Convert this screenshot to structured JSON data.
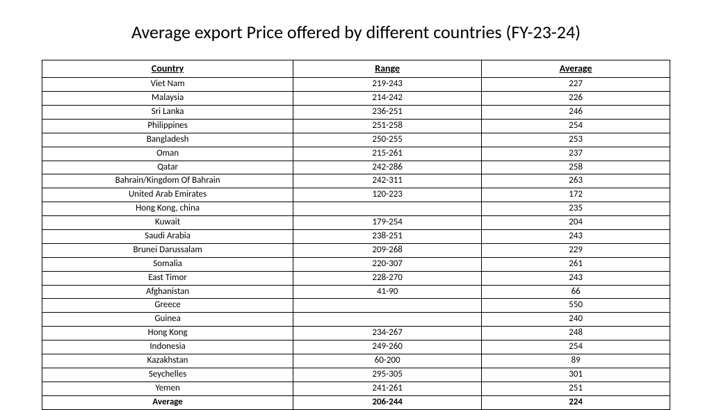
{
  "title": "Average export Price offered by different countries (FY-23-24)",
  "table": {
    "columns": [
      "Country",
      "Range",
      "Average"
    ],
    "rows": [
      [
        "Viet Nam",
        "219-243",
        "227"
      ],
      [
        "Malaysia",
        "214-242",
        "226"
      ],
      [
        "Sri Lanka",
        "236-251",
        "246"
      ],
      [
        "Philippines",
        "251-258",
        "254"
      ],
      [
        "Bangladesh",
        "250-255",
        "253"
      ],
      [
        "Oman",
        "215-261",
        "237"
      ],
      [
        "Qatar",
        "242-286",
        "258"
      ],
      [
        "Bahrain/Kingdom Of Bahrain",
        "242-311",
        "263"
      ],
      [
        "United Arab Emirates",
        "120-223",
        "172"
      ],
      [
        "Hong Kong, china",
        "",
        "235"
      ],
      [
        "Kuwait",
        "179-254",
        "204"
      ],
      [
        "Saudi Arabia",
        "238-251",
        "243"
      ],
      [
        "Brunei Darussalam",
        "209-268",
        "229"
      ],
      [
        "Somalia",
        "220-307",
        "261"
      ],
      [
        "East Timor",
        "228-270",
        "243"
      ],
      [
        "Afghanistan",
        "41-90",
        "66"
      ],
      [
        "Greece",
        "",
        "550"
      ],
      [
        "Guinea",
        "",
        "240"
      ],
      [
        "Hong Kong",
        "234-267",
        "248"
      ],
      [
        "Indonesia",
        "249-260",
        "254"
      ],
      [
        "Kazakhstan",
        "60-200",
        "89"
      ],
      [
        "Seychelles",
        "295-305",
        "301"
      ],
      [
        "Yemen",
        "241-261",
        "251"
      ]
    ],
    "summary": [
      "Average",
      "206-244",
      "224"
    ]
  }
}
